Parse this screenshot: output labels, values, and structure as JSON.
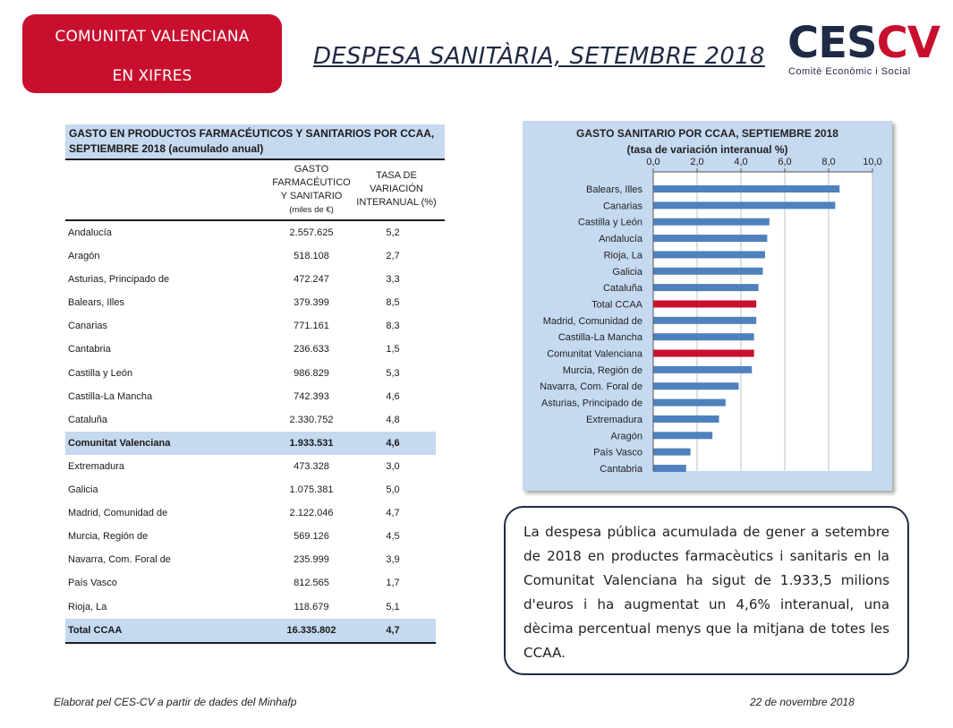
{
  "header": {
    "badge_line1": "COMUNITAT VALENCIANA",
    "badge_line2": "EN XIFRES",
    "title": "DESPESA SANITÀRIA, SETEMBRE 2018",
    "logo_prefix": "CES",
    "logo_suffix": "CV",
    "logo_subtitle": "Comitè Econòmic i Social"
  },
  "table": {
    "title_line1": "GASTO EN PRODUCTOS FARMACÉUTICOS Y SANITARIOS POR CCAA,",
    "title_line2": "SEPTIEMBRE 2018 (acumulado anual)",
    "col1_lines": [
      "GASTO",
      "FARMACÉUTICO",
      "Y SANITARIO"
    ],
    "col1_unit": "(miles de €)",
    "col2_lines": [
      "TASA DE",
      "VARIACIÓN",
      "INTERANUAL (%)"
    ],
    "rows": [
      {
        "region": "Andalucía",
        "gasto": "2.557.625",
        "tasa": "5,2"
      },
      {
        "region": "Aragón",
        "gasto": "518.108",
        "tasa": "2,7"
      },
      {
        "region": "Asturias, Principado de",
        "gasto": "472.247",
        "tasa": "3,3"
      },
      {
        "region": "Balears, Illes",
        "gasto": "379.399",
        "tasa": "8,5"
      },
      {
        "region": "Canarias",
        "gasto": "771.161",
        "tasa": "8,3"
      },
      {
        "region": "Cantabria",
        "gasto": "236.633",
        "tasa": "1,5"
      },
      {
        "region": "Castilla y León",
        "gasto": "986.829",
        "tasa": "5,3"
      },
      {
        "region": "Castilla-La Mancha",
        "gasto": "742.393",
        "tasa": "4,6"
      },
      {
        "region": "Cataluña",
        "gasto": "2.330.752",
        "tasa": "4,8"
      },
      {
        "region": "Comunitat Valenciana",
        "gasto": "1.933.531",
        "tasa": "4,6",
        "highlight": true
      },
      {
        "region": "Extremadura",
        "gasto": "473.328",
        "tasa": "3,0"
      },
      {
        "region": "Galicia",
        "gasto": "1.075.381",
        "tasa": "5,0"
      },
      {
        "region": "Madrid, Comunidad de",
        "gasto": "2.122.046",
        "tasa": "4,7"
      },
      {
        "region": "Murcia, Región de",
        "gasto": "569.126",
        "tasa": "4,5"
      },
      {
        "region": "Navarra, Com. Foral de",
        "gasto": "235.999",
        "tasa": "3,9"
      },
      {
        "region": "País Vasco",
        "gasto": "812.565",
        "tasa": "1,7"
      },
      {
        "region": "Rioja, La",
        "gasto": "118.679",
        "tasa": "5,1"
      },
      {
        "region": "Total CCAA",
        "gasto": "16.335.802",
        "tasa": "4,7",
        "highlight": true,
        "total": true
      }
    ]
  },
  "chart_data": {
    "type": "bar",
    "orientation": "horizontal",
    "title": "GASTO SANITARIO POR CCAA, SEPTIEMBRE 2018",
    "subtitle": "(tasa de variación interanual %)",
    "categories": [
      "Balears, Illes",
      "Canarias",
      "Castilla y León",
      "Andalucía",
      "Rioja, La",
      "Galicia",
      "Cataluña",
      "Total CCAA",
      "Madrid, Comunidad de",
      "Castilla-La Mancha",
      "Comunitat Valenciana",
      "Murcia, Región de",
      "Navarra, Com. Foral de",
      "Asturias, Principado de",
      "Extremadura",
      "Aragón",
      "País Vasco",
      "Cantabria"
    ],
    "values": [
      8.5,
      8.3,
      5.3,
      5.2,
      5.1,
      5.0,
      4.8,
      4.7,
      4.7,
      4.6,
      4.6,
      4.5,
      3.9,
      3.3,
      3.0,
      2.7,
      1.7,
      1.5
    ],
    "highlighted": [
      "Total CCAA",
      "Comunitat Valenciana"
    ],
    "xlim": [
      0,
      10
    ],
    "xticks": [
      0,
      2,
      4,
      6,
      8,
      10
    ],
    "xtick_labels": [
      "0,0",
      "2,0",
      "4,0",
      "6,0",
      "8,0",
      "10,0"
    ],
    "axis_position": "top",
    "grid": true,
    "colors": {
      "default": "#4f81bd",
      "highlight": "#c8102e",
      "background": "#c5d9f1",
      "plot": "#ffffff",
      "grid": "#bfbfbf"
    }
  },
  "note": {
    "text": "La despesa pública acumulada de gener a setembre de 2018 en productes farmacèutics i sanitaris en la Comunitat Valenciana ha sigut de 1.933,5 milions d'euros i ha augmentat un 4,6% interanual, una dècima percentual menys que la mitjana de totes les CCAA."
  },
  "footer": {
    "source": "Elaborat pel CES-CV a partir de dades del Minhafp",
    "date": "22 de novembre 2018"
  }
}
